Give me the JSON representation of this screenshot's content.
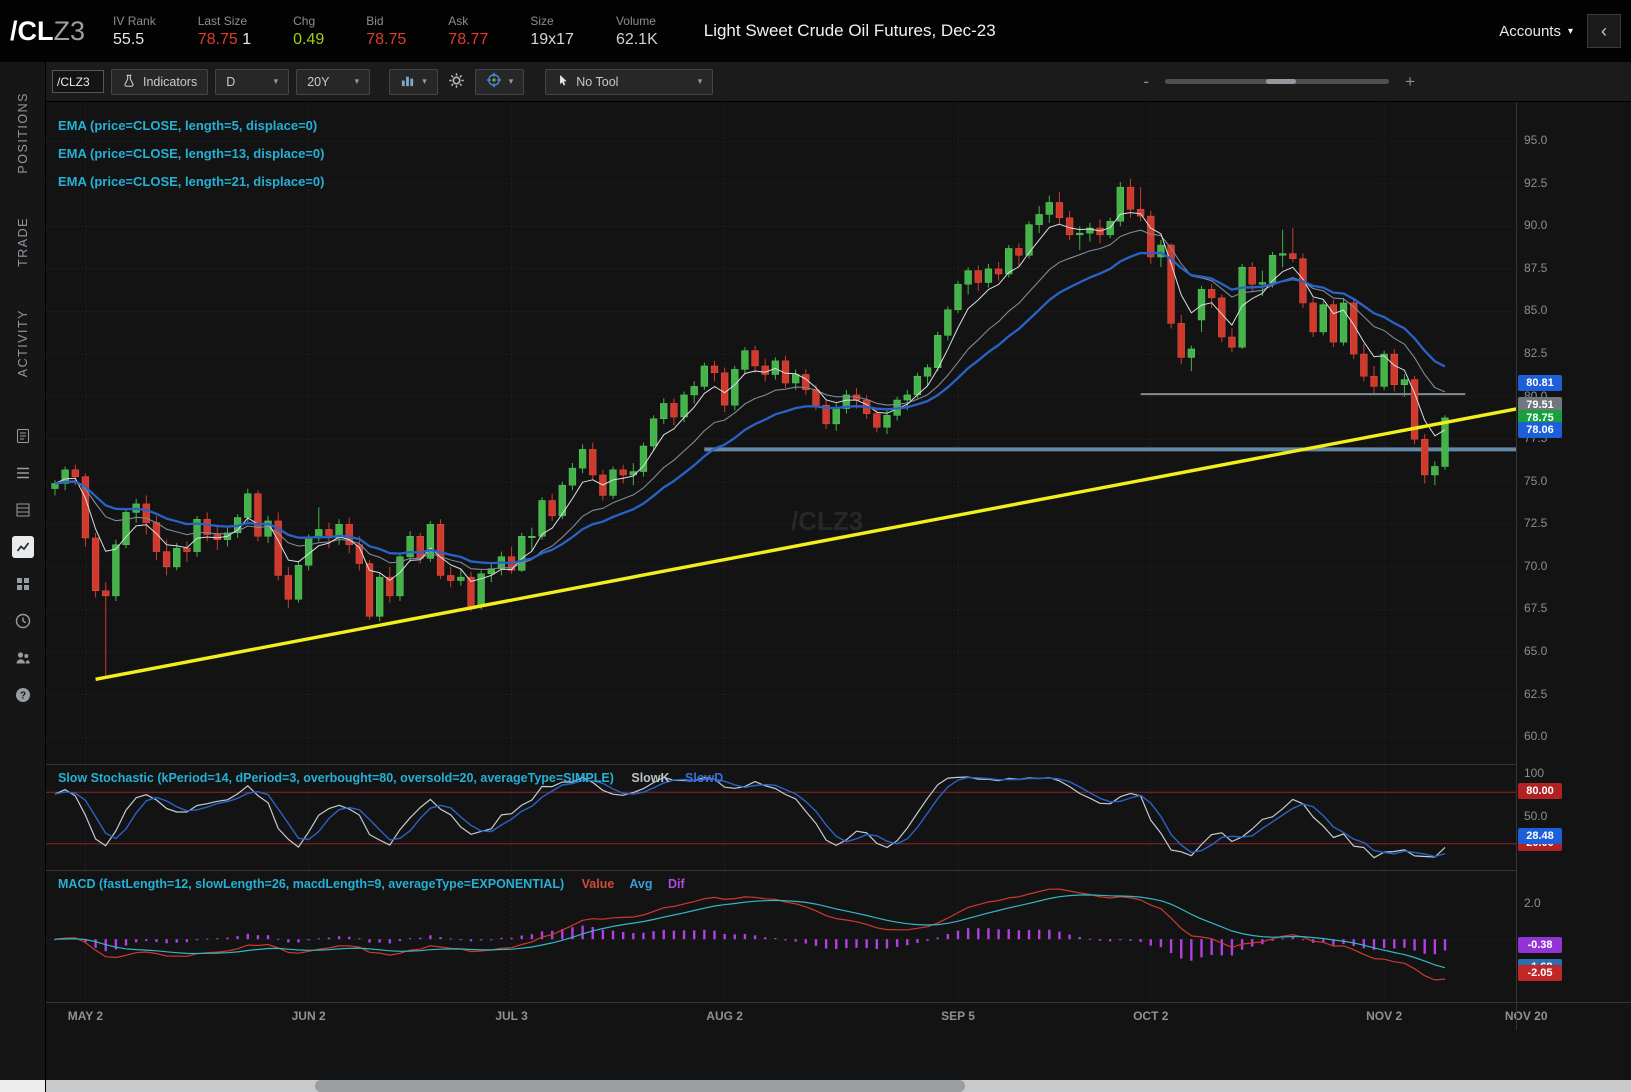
{
  "icons": {
    "caret_down": "▾"
  },
  "header": {
    "symbol_main": "/CL",
    "symbol_suffix": "Z3",
    "stats": [
      {
        "label": "IV Rank",
        "value": "55.5",
        "color": "#e6e6e6"
      },
      {
        "label": "Last Size",
        "value": "78.75",
        "value2": "1",
        "color": "#e23b2e"
      },
      {
        "label": "Chg",
        "value": "0.49",
        "color": "#9ed110"
      },
      {
        "label": "Bid",
        "value": "78.75",
        "color": "#e23b2e"
      },
      {
        "label": "Ask",
        "value": "78.77",
        "color": "#e23b2e"
      },
      {
        "label": "Size",
        "value": "19x17",
        "color": "#d8d8d8"
      },
      {
        "label": "Volume",
        "value": "62.1K",
        "color": "#cfcfcf"
      }
    ],
    "instrument_title": "Light Sweet Crude Oil Futures, Dec-23",
    "accounts_label": "Accounts",
    "collapse_glyph": "‹"
  },
  "sidebar": {
    "tabs": [
      "POSITIONS",
      "TRADE",
      "ACTIVITY"
    ]
  },
  "toolbar": {
    "symbol_value": "/CLZ3",
    "indicators_label": "Indicators",
    "timeframe_value": "D",
    "range_value": "20Y",
    "tool_value": "No Tool",
    "zoom_minus": "-",
    "zoom_plus": "+"
  },
  "chart_data": {
    "type": "candlestick",
    "symbol": "/CLZ3",
    "watermark": "/CLZ3",
    "ema_labels": [
      "EMA (price=CLOSE, length=5, displace=0)",
      "EMA (price=CLOSE, length=13, displace=0)",
      "EMA (price=CLOSE, length=21, displace=0)"
    ],
    "ema_lengths": [
      5,
      13,
      21
    ],
    "candles": [
      [
        74.6,
        75.1,
        74.2,
        74.9
      ],
      [
        74.9,
        75.9,
        74.5,
        75.7
      ],
      [
        75.7,
        76.0,
        74.8,
        75.3
      ],
      [
        75.3,
        75.5,
        71.2,
        71.7
      ],
      [
        71.7,
        72.0,
        68.2,
        68.6
      ],
      [
        68.6,
        69.1,
        63.6,
        68.3
      ],
      [
        68.3,
        71.6,
        68.0,
        71.3
      ],
      [
        71.3,
        73.4,
        71.1,
        73.2
      ],
      [
        73.2,
        74.0,
        72.6,
        73.7
      ],
      [
        73.7,
        74.2,
        71.9,
        72.6
      ],
      [
        72.6,
        73.0,
        70.4,
        70.9
      ],
      [
        70.9,
        71.6,
        69.5,
        70.0
      ],
      [
        70.0,
        71.4,
        69.8,
        71.1
      ],
      [
        71.1,
        71.5,
        70.3,
        70.9
      ],
      [
        70.9,
        73.0,
        70.6,
        72.8
      ],
      [
        72.8,
        73.2,
        71.5,
        71.9
      ],
      [
        71.9,
        72.4,
        71.0,
        71.6
      ],
      [
        71.6,
        72.3,
        71.2,
        72.0
      ],
      [
        72.0,
        73.1,
        71.7,
        72.9
      ],
      [
        72.9,
        74.6,
        72.6,
        74.3
      ],
      [
        74.3,
        74.5,
        71.5,
        71.8
      ],
      [
        71.8,
        73.0,
        71.4,
        72.7
      ],
      [
        72.7,
        73.2,
        69.2,
        69.5
      ],
      [
        69.5,
        70.0,
        67.6,
        68.1
      ],
      [
        68.1,
        70.3,
        67.9,
        70.1
      ],
      [
        70.1,
        71.9,
        69.8,
        71.7
      ],
      [
        71.7,
        73.5,
        71.5,
        72.2
      ],
      [
        72.2,
        72.6,
        71.1,
        71.7
      ],
      [
        71.7,
        72.8,
        71.3,
        72.5
      ],
      [
        72.5,
        72.9,
        70.8,
        71.3
      ],
      [
        71.3,
        71.8,
        69.8,
        70.2
      ],
      [
        70.2,
        70.4,
        66.9,
        67.1
      ],
      [
        67.1,
        69.6,
        66.8,
        69.4
      ],
      [
        69.4,
        70.0,
        67.9,
        68.3
      ],
      [
        68.3,
        70.8,
        68.0,
        70.6
      ],
      [
        70.6,
        72.1,
        70.3,
        71.8
      ],
      [
        71.8,
        72.0,
        70.2,
        70.5
      ],
      [
        70.5,
        72.7,
        70.3,
        72.5
      ],
      [
        72.5,
        72.8,
        69.3,
        69.5
      ],
      [
        69.5,
        70.0,
        68.8,
        69.2
      ],
      [
        69.2,
        69.9,
        68.9,
        69.4
      ],
      [
        69.4,
        69.7,
        67.4,
        67.7
      ],
      [
        67.7,
        69.8,
        67.5,
        69.6
      ],
      [
        69.6,
        70.2,
        69.1,
        69.9
      ],
      [
        69.9,
        70.9,
        69.5,
        70.6
      ],
      [
        70.6,
        71.2,
        69.6,
        69.8
      ],
      [
        69.8,
        72.0,
        69.7,
        71.8
      ],
      [
        71.8,
        72.3,
        70.9,
        71.8
      ],
      [
        71.8,
        74.1,
        71.6,
        73.9
      ],
      [
        73.9,
        74.3,
        72.7,
        73.0
      ],
      [
        73.0,
        75.0,
        72.8,
        74.8
      ],
      [
        74.8,
        76.1,
        74.5,
        75.8
      ],
      [
        75.8,
        77.2,
        75.5,
        76.9
      ],
      [
        76.9,
        77.3,
        75.1,
        75.4
      ],
      [
        75.4,
        75.7,
        73.9,
        74.2
      ],
      [
        74.2,
        75.9,
        74.0,
        75.7
      ],
      [
        75.7,
        76.0,
        74.9,
        75.4
      ],
      [
        75.4,
        76.1,
        74.8,
        75.6
      ],
      [
        75.6,
        77.3,
        75.3,
        77.1
      ],
      [
        77.1,
        78.9,
        76.8,
        78.7
      ],
      [
        78.7,
        79.9,
        78.4,
        79.6
      ],
      [
        79.6,
        79.9,
        78.3,
        78.8
      ],
      [
        78.8,
        80.3,
        78.5,
        80.1
      ],
      [
        80.1,
        80.9,
        79.6,
        80.6
      ],
      [
        80.6,
        82.0,
        80.4,
        81.8
      ],
      [
        81.8,
        82.1,
        80.9,
        81.4
      ],
      [
        81.4,
        81.7,
        79.1,
        79.5
      ],
      [
        79.5,
        81.8,
        79.2,
        81.6
      ],
      [
        81.6,
        82.9,
        81.3,
        82.7
      ],
      [
        82.7,
        83.0,
        81.4,
        81.8
      ],
      [
        81.8,
        82.2,
        80.9,
        81.3
      ],
      [
        81.3,
        82.3,
        81.0,
        82.1
      ],
      [
        82.1,
        82.4,
        80.5,
        80.8
      ],
      [
        80.8,
        81.6,
        80.4,
        81.3
      ],
      [
        81.3,
        81.6,
        80.1,
        80.4
      ],
      [
        80.4,
        80.7,
        79.2,
        79.5
      ],
      [
        79.5,
        79.8,
        78.1,
        78.4
      ],
      [
        78.4,
        79.6,
        78.0,
        79.3
      ],
      [
        79.3,
        80.4,
        79.0,
        80.1
      ],
      [
        80.1,
        80.5,
        79.3,
        79.8
      ],
      [
        79.8,
        80.1,
        78.7,
        79.0
      ],
      [
        79.0,
        79.3,
        77.9,
        78.2
      ],
      [
        78.2,
        79.2,
        77.8,
        78.9
      ],
      [
        78.9,
        80.0,
        78.6,
        79.8
      ],
      [
        79.8,
        80.4,
        79.2,
        80.1
      ],
      [
        80.1,
        81.4,
        79.9,
        81.2
      ],
      [
        81.2,
        81.9,
        80.6,
        81.7
      ],
      [
        81.7,
        83.8,
        81.5,
        83.6
      ],
      [
        83.6,
        85.3,
        83.3,
        85.1
      ],
      [
        85.1,
        86.8,
        84.9,
        86.6
      ],
      [
        86.6,
        87.6,
        86.0,
        87.4
      ],
      [
        87.4,
        87.7,
        86.2,
        86.7
      ],
      [
        86.7,
        87.8,
        86.4,
        87.5
      ],
      [
        87.5,
        87.9,
        86.8,
        87.2
      ],
      [
        87.2,
        88.9,
        87.0,
        88.7
      ],
      [
        88.7,
        89.0,
        87.7,
        88.3
      ],
      [
        88.3,
        90.3,
        88.1,
        90.1
      ],
      [
        90.1,
        91.2,
        89.6,
        90.7
      ],
      [
        90.7,
        91.8,
        90.2,
        91.4
      ],
      [
        91.4,
        92.0,
        90.1,
        90.5
      ],
      [
        90.5,
        90.9,
        89.2,
        89.5
      ],
      [
        89.5,
        90.0,
        88.6,
        89.6
      ],
      [
        89.6,
        90.2,
        89.1,
        89.9
      ],
      [
        89.9,
        90.4,
        89.0,
        89.5
      ],
      [
        89.5,
        90.5,
        89.3,
        90.3
      ],
      [
        90.3,
        92.6,
        90.0,
        92.3
      ],
      [
        92.3,
        92.8,
        90.5,
        91.0
      ],
      [
        91.0,
        92.3,
        90.3,
        90.6
      ],
      [
        90.6,
        90.9,
        87.8,
        88.2
      ],
      [
        88.2,
        89.2,
        87.6,
        88.9
      ],
      [
        88.9,
        89.0,
        84.0,
        84.3
      ],
      [
        84.3,
        84.8,
        81.9,
        82.3
      ],
      [
        82.3,
        83.0,
        81.5,
        82.8
      ],
      [
        84.5,
        86.5,
        83.8,
        86.3
      ],
      [
        86.3,
        86.6,
        85.2,
        85.8
      ],
      [
        85.8,
        86.0,
        83.2,
        83.5
      ],
      [
        83.5,
        84.0,
        82.6,
        82.9
      ],
      [
        82.9,
        87.8,
        82.8,
        87.6
      ],
      [
        87.6,
        87.9,
        86.2,
        86.6
      ],
      [
        86.6,
        87.4,
        85.9,
        86.7
      ],
      [
        86.7,
        88.5,
        86.4,
        88.3
      ],
      [
        88.3,
        89.8,
        87.6,
        88.4
      ],
      [
        88.4,
        89.9,
        87.9,
        88.1
      ],
      [
        88.1,
        88.4,
        85.2,
        85.5
      ],
      [
        85.5,
        85.8,
        83.5,
        83.8
      ],
      [
        83.8,
        85.6,
        83.6,
        85.4
      ],
      [
        85.4,
        85.7,
        82.9,
        83.2
      ],
      [
        83.2,
        85.8,
        83.0,
        85.5
      ],
      [
        85.5,
        85.7,
        82.2,
        82.5
      ],
      [
        82.5,
        83.1,
        80.9,
        81.2
      ],
      [
        81.2,
        81.8,
        80.2,
        80.6
      ],
      [
        80.6,
        82.7,
        80.4,
        82.5
      ],
      [
        82.5,
        82.8,
        80.3,
        80.7
      ],
      [
        80.7,
        81.3,
        80.0,
        81.0
      ],
      [
        81.0,
        81.2,
        77.2,
        77.5
      ],
      [
        77.5,
        77.8,
        74.9,
        75.4
      ],
      [
        75.4,
        76.2,
        74.8,
        75.9
      ],
      [
        75.9,
        78.9,
        75.7,
        78.75
      ]
    ],
    "price_axis": {
      "ticks": [
        "95.0",
        "92.5",
        "90.0",
        "87.5",
        "85.0",
        "82.5",
        "80.0",
        "77.5",
        "75.0",
        "72.5",
        "70.0",
        "67.5",
        "65.0",
        "62.5",
        "60.0"
      ],
      "bubbles": [
        {
          "value": "80.81",
          "color": "#1d5fd8"
        },
        {
          "value": "79.51",
          "color": "#70787e"
        },
        {
          "value": "78.75",
          "color": "#17a03d"
        },
        {
          "value": "78.06",
          "color": "#1d5fd8"
        }
      ]
    },
    "time_axis": [
      {
        "label": "MAY 2",
        "index": 3
      },
      {
        "label": "JUN 2",
        "index": 25
      },
      {
        "label": "JUL 3",
        "index": 45
      },
      {
        "label": "AUG 2",
        "index": 66
      },
      {
        "label": "SEP 5",
        "index": 89
      },
      {
        "label": "OCT 2",
        "index": 108
      },
      {
        "label": "NOV 2",
        "index": 131
      },
      {
        "label": "NOV 20",
        "index": 145
      }
    ],
    "trendline": {
      "x1_index": 4,
      "price1": 63.4,
      "x2_index": 146,
      "price2": 79.5,
      "color": "#f3ef1a"
    },
    "hlines": [
      {
        "price": 76.9,
        "from_index": 64,
        "to_index": 146,
        "color": "#7fb2d9",
        "width": 4,
        "opacity": 0.75
      },
      {
        "price": 80.15,
        "from_index": 107,
        "to_index": 139,
        "color": "#97a2aa",
        "width": 2,
        "opacity": 0.85
      }
    ],
    "stochastic": {
      "title": "Slow Stochastic (kPeriod=14, dPeriod=3, overbought=80, oversold=20, averageType=SIMPLE)",
      "legend": [
        {
          "label": "SlowK",
          "color": "#b9c2ca"
        },
        {
          "label": "SlowD",
          "color": "#3b6fd4"
        }
      ],
      "kPeriod": 14,
      "dPeriod": 3,
      "overbought": 80,
      "oversold": 20,
      "ticks": [
        "100",
        "50.0"
      ],
      "bubbles": [
        {
          "value": "80.00",
          "v": 80,
          "color": "#b22222"
        },
        {
          "value": "20.00",
          "v": 20,
          "color": "#b22222"
        },
        {
          "value": "28.48",
          "v": 28.48,
          "color": "#1d5fd8"
        }
      ]
    },
    "macd": {
      "title": "MACD (fastLength=12, slowLength=26, macdLength=9, averageType=EXPONENTIAL)",
      "legend": [
        {
          "label": "Value",
          "color": "#cc4b3b"
        },
        {
          "label": "Avg",
          "color": "#3f9bd8"
        },
        {
          "label": "Dif",
          "color": "#b14ae0"
        }
      ],
      "fast": 12,
      "slow": 26,
      "signal": 9,
      "ticks": [
        {
          "label": "2.0",
          "v": 2.0
        }
      ],
      "bubbles": [
        {
          "value": "-0.38",
          "v": -0.38,
          "color": "#9333d6"
        },
        {
          "value": "-1.68",
          "v": -1.68,
          "color": "#2d6fae"
        },
        {
          "value": "-2.05",
          "v": -2.05,
          "color": "#c22727"
        }
      ]
    }
  }
}
